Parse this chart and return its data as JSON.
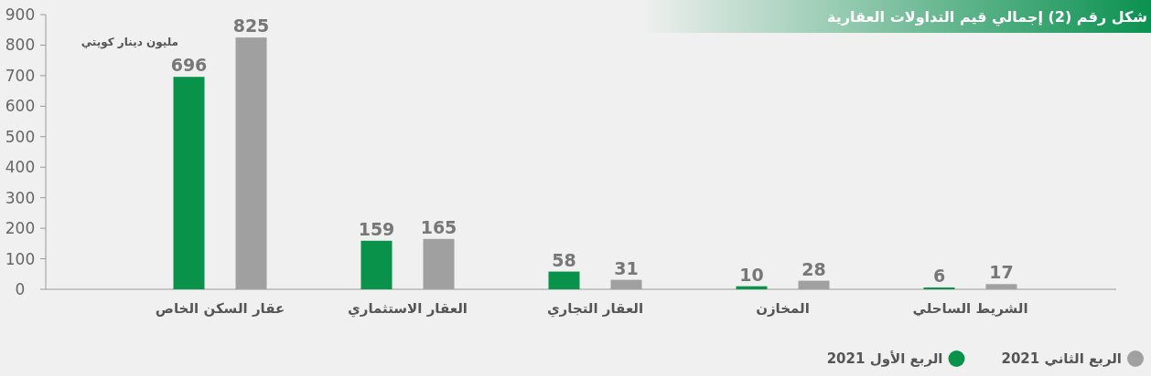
{
  "chart_data": {
    "type": "bar",
    "title": "شكل رقم (2) إجمالي قيم التداولات العقارية",
    "annotations": [
      "مليون دينار كويتي"
    ],
    "categories": [
      "عقار السكن الخاص",
      "العقار الاستثماري",
      "العقار التجاري",
      "المخازن",
      "الشريط الساحلي"
    ],
    "series": [
      {
        "name": "الربع الأول 2021",
        "color": "#09924a",
        "values": [
          696,
          159,
          58,
          10,
          6
        ]
      },
      {
        "name": "الربع الثاني 2021",
        "color": "#a0a0a0",
        "values": [
          825,
          165,
          31,
          28,
          17
        ]
      }
    ],
    "ylim": [
      0,
      900
    ],
    "yticks": [
      0,
      100,
      200,
      300,
      400,
      500,
      600,
      700,
      800,
      900
    ],
    "data_labels": true,
    "legend": "bottom right",
    "grid": false
  }
}
